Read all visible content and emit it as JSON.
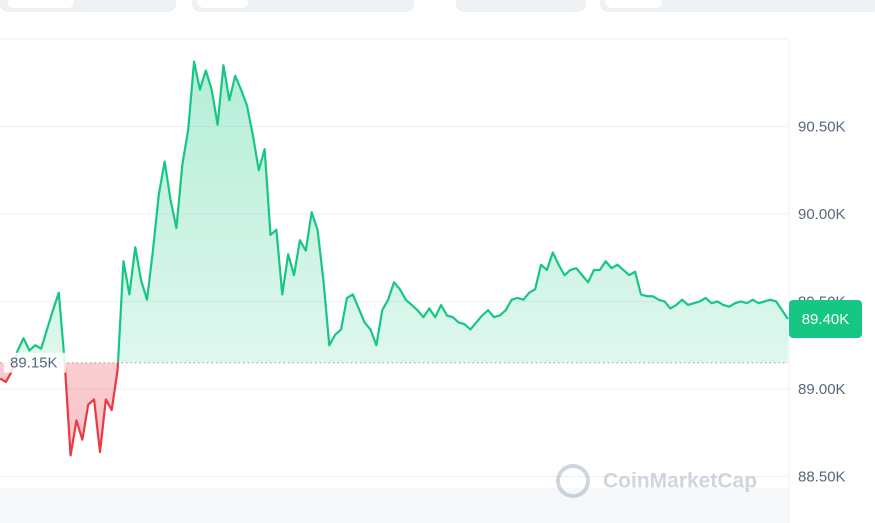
{
  "chart_data": {
    "type": "line",
    "values": [
      89060,
      89040,
      89100,
      89220,
      89290,
      89220,
      89250,
      89230,
      89340,
      89450,
      89550,
      89150,
      88620,
      88820,
      88710,
      88910,
      88940,
      88640,
      88940,
      88880,
      89110,
      89730,
      89540,
      89810,
      89620,
      89510,
      89790,
      90110,
      90300,
      90080,
      89920,
      90280,
      90480,
      90870,
      90710,
      90820,
      90710,
      90510,
      90850,
      90650,
      90790,
      90710,
      90620,
      90450,
      90250,
      90370,
      89880,
      89910,
      89540,
      89770,
      89650,
      89850,
      89790,
      90010,
      89910,
      89620,
      89250,
      89310,
      89340,
      89520,
      89540,
      89460,
      89380,
      89340,
      89250,
      89450,
      89510,
      89610,
      89570,
      89510,
      89480,
      89450,
      89410,
      89460,
      89410,
      89480,
      89420,
      89410,
      89380,
      89370,
      89340,
      89380,
      89420,
      89450,
      89410,
      89420,
      89450,
      89510,
      89520,
      89510,
      89550,
      89570,
      89710,
      89680,
      89780,
      89710,
      89650,
      89680,
      89690,
      89650,
      89610,
      89680,
      89680,
      89730,
      89690,
      89710,
      89680,
      89650,
      89670,
      89540,
      89530,
      89530,
      89510,
      89500,
      89460,
      89480,
      89510,
      89480,
      89490,
      89500,
      89520,
      89490,
      89500,
      89480,
      89470,
      89490,
      89500,
      89490,
      89510,
      89490,
      89500,
      89510,
      89500,
      89450,
      89400
    ],
    "up_color": "#16c784",
    "down_color": "#ea3943",
    "ylim": [
      88234,
      91000
    ],
    "yticks": [
      {
        "value": 88500,
        "label": "88.50K"
      },
      {
        "value": 89000,
        "label": "89.00K"
      },
      {
        "value": 89500,
        "label": "89.50K"
      },
      {
        "value": 90000,
        "label": "90.00K"
      },
      {
        "value": 90500,
        "label": "90.50K"
      }
    ],
    "grid": true,
    "baseline": {
      "value": 89150,
      "label": "89.15K"
    },
    "current_price": {
      "value": 89400,
      "label": "89.40K"
    },
    "watermark": "CoinMarketCap"
  }
}
